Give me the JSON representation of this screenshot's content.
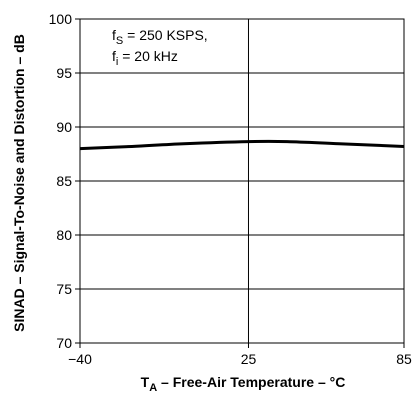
{
  "chart_data": {
    "type": "line",
    "ylabel": "SINAD – Signal-To-Noise and Distortion – dB",
    "xlabel_parts": {
      "main": "T",
      "sub": "A",
      "rest": " – Free-Air Temperature – °C"
    },
    "xlim": [
      -40,
      85
    ],
    "ylim": [
      70,
      100
    ],
    "x_ticks": [
      -40,
      25,
      85
    ],
    "y_ticks": [
      70,
      75,
      80,
      85,
      90,
      95,
      100
    ],
    "x_tick_labels": [
      "−40",
      "25",
      "85"
    ],
    "y_tick_labels": [
      "70",
      "75",
      "80",
      "85",
      "90",
      "95",
      "100"
    ],
    "vertical_gridlines": [
      25
    ],
    "horizontal_gridlines": [
      75,
      80,
      85,
      90,
      95
    ],
    "grid": true,
    "annotations": [
      {
        "main": "f",
        "sub": "S",
        "rest": " = 250 KSPS,"
      },
      {
        "main": "f",
        "sub": "i",
        "rest": " = 20 kHz"
      }
    ],
    "series": [
      {
        "x": [
          -40,
          -20,
          0,
          25,
          40,
          60,
          85
        ],
        "y": [
          88.0,
          88.2,
          88.45,
          88.65,
          88.65,
          88.45,
          88.2
        ]
      }
    ],
    "line_color": "#000000"
  }
}
